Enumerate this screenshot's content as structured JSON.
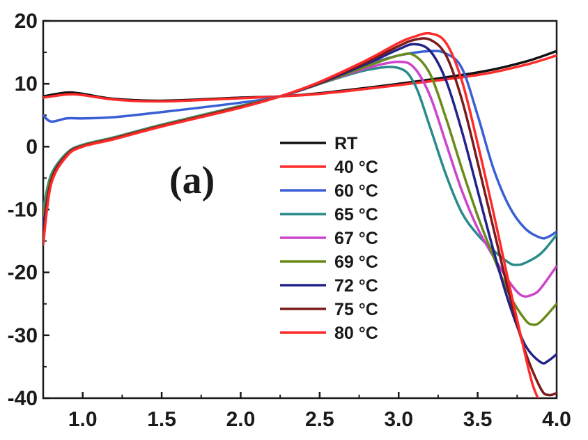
{
  "chart_data": {
    "type": "line",
    "title": "",
    "xlabel": "",
    "ylabel": "",
    "xlim": [
      0.75,
      4.0
    ],
    "ylim": [
      -40,
      20
    ],
    "xticks": [
      "1.0",
      "1.5",
      "2.0",
      "2.5",
      "3.0",
      "3.5",
      "4.0"
    ],
    "yticks": [
      "20",
      "10",
      "0",
      "-10",
      "-20",
      "-30",
      "-40"
    ],
    "grid": false,
    "legend_position": "center",
    "annotation": "(a)",
    "series": [
      {
        "name": "RT",
        "color": "#111111",
        "x": [
          0.75,
          0.9,
          1.0,
          1.2,
          1.5,
          2.0,
          2.25,
          2.5,
          3.0,
          3.5,
          3.8,
          4.0
        ],
        "y": [
          8.0,
          8.6,
          8.4,
          7.6,
          7.3,
          7.8,
          8.0,
          8.5,
          10.0,
          11.8,
          13.5,
          15.2
        ]
      },
      {
        "name": "40 °C",
        "color": "#ff2a2a",
        "x": [
          0.75,
          0.9,
          1.0,
          1.2,
          1.5,
          2.0,
          2.25,
          2.5,
          3.0,
          3.5,
          3.8,
          4.0
        ],
        "y": [
          7.8,
          8.3,
          8.2,
          7.5,
          7.2,
          7.7,
          8.0,
          8.4,
          9.8,
          11.4,
          13.0,
          14.5
        ]
      },
      {
        "name": "60 °C",
        "color": "#3a5fd4",
        "x": [
          0.75,
          0.8,
          0.9,
          1.0,
          1.2,
          1.5,
          2.0,
          2.25,
          2.5,
          2.8,
          3.0,
          3.2,
          3.3,
          3.4,
          3.5,
          3.6,
          3.7,
          3.8,
          3.9,
          3.95,
          4.0
        ],
        "y": [
          5.0,
          4.0,
          4.5,
          4.5,
          4.7,
          5.5,
          7.0,
          8.0,
          10.0,
          13.0,
          14.5,
          15.2,
          14.8,
          12.5,
          5.0,
          -3.5,
          -9.5,
          -13.0,
          -14.5,
          -14.3,
          -13.5
        ]
      },
      {
        "name": "65 °C",
        "color": "#2a8a8a",
        "x": [
          0.75,
          0.8,
          0.9,
          1.0,
          1.2,
          1.5,
          2.0,
          2.25,
          2.5,
          2.8,
          3.0,
          3.1,
          3.2,
          3.3,
          3.4,
          3.5,
          3.6,
          3.7,
          3.75,
          3.8,
          3.9,
          4.0
        ],
        "y": [
          -10.0,
          -4.5,
          -1.0,
          0.3,
          1.5,
          3.5,
          6.5,
          8.0,
          10.0,
          12.2,
          12.5,
          10.0,
          3.0,
          -4.5,
          -10.5,
          -14.0,
          -16.5,
          -18.5,
          -18.8,
          -18.5,
          -17.0,
          -14.0
        ]
      },
      {
        "name": "67 °C",
        "color": "#cc44cc",
        "x": [
          0.75,
          0.8,
          0.9,
          1.0,
          1.2,
          1.5,
          2.0,
          2.25,
          2.5,
          2.8,
          3.0,
          3.1,
          3.2,
          3.3,
          3.4,
          3.5,
          3.6,
          3.7,
          3.78,
          3.85,
          3.9,
          4.0
        ],
        "y": [
          -11.0,
          -5.0,
          -1.2,
          0.2,
          1.4,
          3.4,
          6.4,
          8.0,
          10.0,
          12.5,
          13.5,
          12.5,
          8.0,
          0.5,
          -7.0,
          -13.0,
          -17.5,
          -21.5,
          -23.7,
          -23.5,
          -22.5,
          -19.0
        ]
      },
      {
        "name": "69 °C",
        "color": "#6a8a1a",
        "x": [
          0.75,
          0.8,
          0.9,
          1.0,
          1.2,
          1.5,
          2.0,
          2.25,
          2.5,
          2.8,
          3.0,
          3.1,
          3.2,
          3.3,
          3.4,
          3.5,
          3.6,
          3.7,
          3.8,
          3.85,
          3.9,
          4.0
        ],
        "y": [
          -11.0,
          -5.0,
          -1.2,
          0.2,
          1.4,
          3.4,
          6.4,
          8.0,
          10.0,
          12.8,
          14.5,
          14.5,
          11.5,
          4.5,
          -3.5,
          -11.0,
          -17.5,
          -23.5,
          -27.5,
          -28.3,
          -27.8,
          -25.0
        ]
      },
      {
        "name": "72 °C",
        "color": "#22228a",
        "x": [
          0.75,
          0.8,
          0.9,
          1.0,
          1.2,
          1.5,
          2.0,
          2.25,
          2.5,
          2.8,
          3.0,
          3.1,
          3.2,
          3.3,
          3.4,
          3.5,
          3.6,
          3.7,
          3.8,
          3.9,
          3.95,
          4.0
        ],
        "y": [
          -13.0,
          -5.5,
          -1.3,
          0.1,
          1.3,
          3.3,
          6.3,
          8.0,
          10.1,
          13.2,
          15.5,
          16.3,
          15.2,
          10.5,
          2.5,
          -7.0,
          -16.5,
          -25.0,
          -31.5,
          -34.3,
          -34.0,
          -33.0
        ]
      },
      {
        "name": "75 °C",
        "color": "#7a1a1a",
        "x": [
          0.75,
          0.8,
          0.9,
          1.0,
          1.2,
          1.5,
          2.0,
          2.25,
          2.5,
          2.8,
          3.0,
          3.1,
          3.2,
          3.3,
          3.4,
          3.5,
          3.6,
          3.7,
          3.8,
          3.9,
          3.95,
          4.0
        ],
        "y": [
          -15.0,
          -5.5,
          -1.3,
          0.1,
          1.3,
          3.3,
          6.3,
          8.0,
          10.2,
          13.5,
          16.0,
          17.0,
          17.0,
          14.5,
          7.5,
          -2.5,
          -13.0,
          -23.5,
          -32.5,
          -38.5,
          -39.5,
          -39.2
        ]
      },
      {
        "name": "80 °C",
        "color": "#ff2a2a",
        "x": [
          0.75,
          0.8,
          0.9,
          1.0,
          1.2,
          1.5,
          2.0,
          2.25,
          2.5,
          2.8,
          3.0,
          3.1,
          3.2,
          3.3,
          3.4,
          3.5,
          3.6,
          3.7,
          3.8,
          3.85,
          3.9
        ],
        "y": [
          -15.5,
          -6.0,
          -1.5,
          0.0,
          1.2,
          3.2,
          6.2,
          8.0,
          10.3,
          13.8,
          16.5,
          17.5,
          18.0,
          16.5,
          10.5,
          0.5,
          -10.5,
          -22.0,
          -33.0,
          -38.0,
          -41.0
        ]
      }
    ]
  }
}
